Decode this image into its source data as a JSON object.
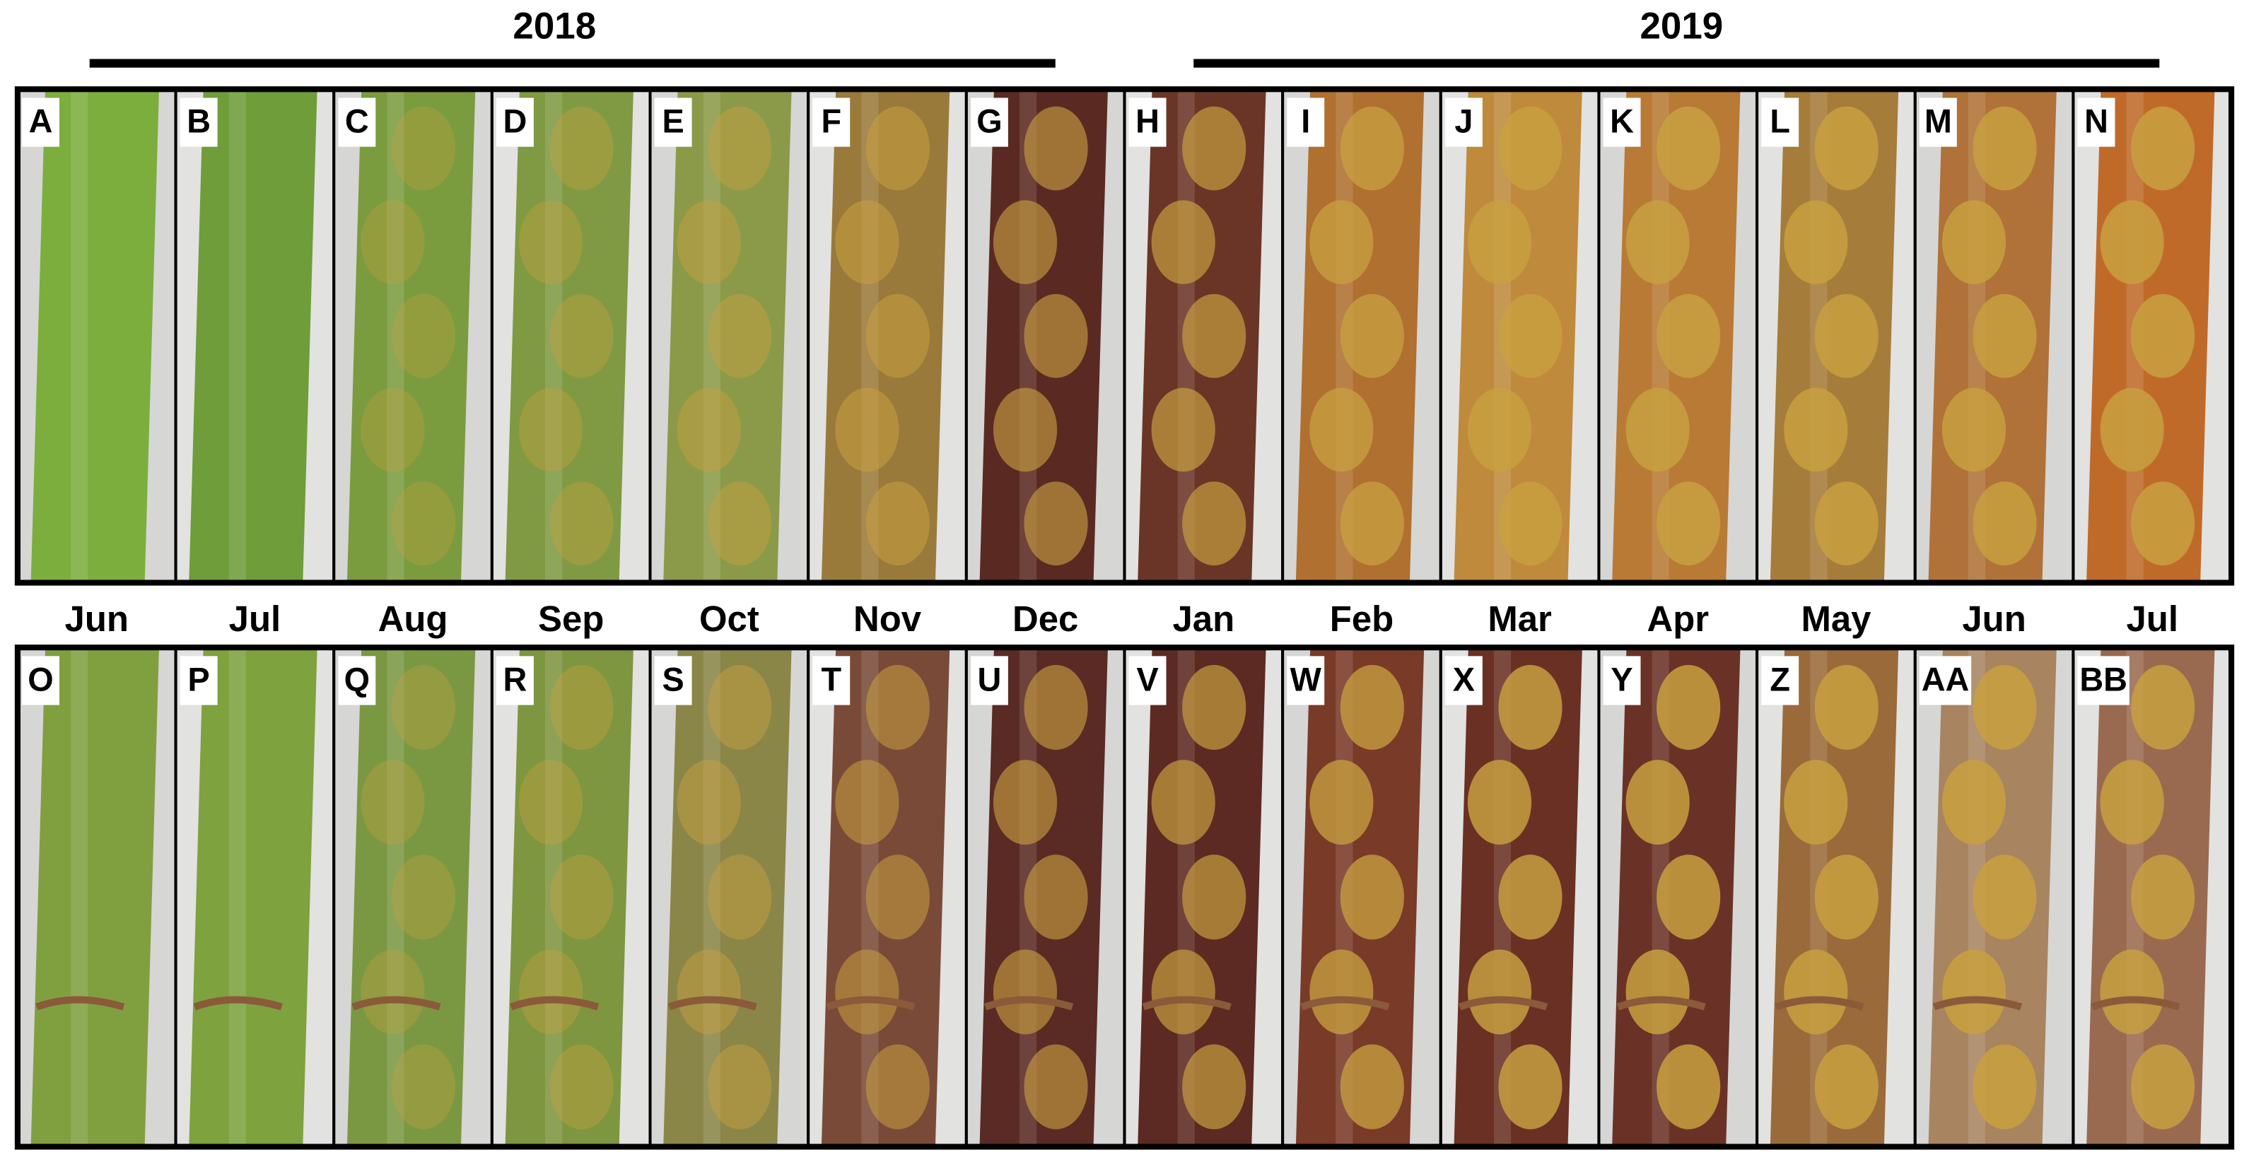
{
  "header": {
    "years": [
      "2018",
      "2019"
    ]
  },
  "months": [
    "Jun",
    "Jul",
    "Aug",
    "Sep",
    "Oct",
    "Nov",
    "Dec",
    "Jan",
    "Feb",
    "Mar",
    "Apr",
    "May",
    "Jun",
    "Jul"
  ],
  "rows": [
    {
      "panels": [
        "A",
        "B",
        "C",
        "D",
        "E",
        "F",
        "G",
        "H",
        "I",
        "J",
        "K",
        "L",
        "M",
        "N"
      ]
    },
    {
      "panels": [
        "O",
        "P",
        "Q",
        "R",
        "S",
        "T",
        "U",
        "V",
        "W",
        "X",
        "Y",
        "Z",
        "AA",
        "BB"
      ]
    }
  ]
}
